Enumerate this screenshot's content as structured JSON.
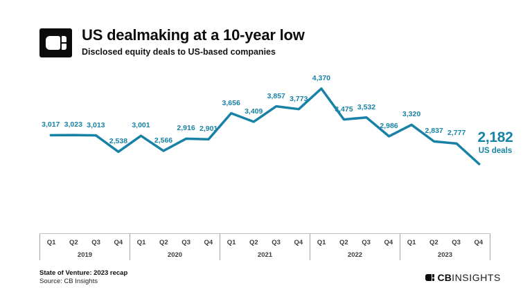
{
  "header": {
    "title": "US dealmaking at a 10-year low",
    "subtitle": "Disclosed equity deals to US-based companies"
  },
  "chart_data": {
    "type": "line",
    "title": "US dealmaking at a 10-year low",
    "subtitle": "Disclosed equity deals to US-based companies",
    "series_name": "US deals",
    "categories": [
      "Q1 2019",
      "Q2 2019",
      "Q3 2019",
      "Q4 2019",
      "Q1 2020",
      "Q2 2020",
      "Q3 2020",
      "Q4 2020",
      "Q1 2021",
      "Q2 2021",
      "Q3 2021",
      "Q4 2021",
      "Q1 2022",
      "Q2 2022",
      "Q3 2022",
      "Q4 2022",
      "Q1 2023",
      "Q2 2023",
      "Q3 2023",
      "Q4 2023"
    ],
    "values": [
      3017,
      3023,
      3013,
      2538,
      3001,
      2566,
      2916,
      2901,
      3656,
      3409,
      3857,
      3773,
      4370,
      3475,
      3532,
      2986,
      3320,
      2837,
      2777,
      2182
    ],
    "years": [
      {
        "label": "2019",
        "quarters": [
          "Q1",
          "Q2",
          "Q3",
          "Q4"
        ]
      },
      {
        "label": "2020",
        "quarters": [
          "Q1",
          "Q2",
          "Q3",
          "Q4"
        ]
      },
      {
        "label": "2021",
        "quarters": [
          "Q1",
          "Q2",
          "Q3",
          "Q4"
        ]
      },
      {
        "label": "2022",
        "quarters": [
          "Q1",
          "Q2",
          "Q3",
          "Q4"
        ]
      },
      {
        "label": "2023",
        "quarters": [
          "Q1",
          "Q2",
          "Q3",
          "Q4"
        ]
      }
    ],
    "ylim": [
      2182,
      4370
    ],
    "grid": false,
    "legend": "none",
    "line_color": "#1782A5",
    "final_label": {
      "value": "2,182",
      "caption": "US deals"
    }
  },
  "footer": {
    "report": "State of Venture: 2023 recap",
    "source": "Source: CB Insights",
    "brand_cb": "CB",
    "brand_insights": "INSIGHTS"
  }
}
